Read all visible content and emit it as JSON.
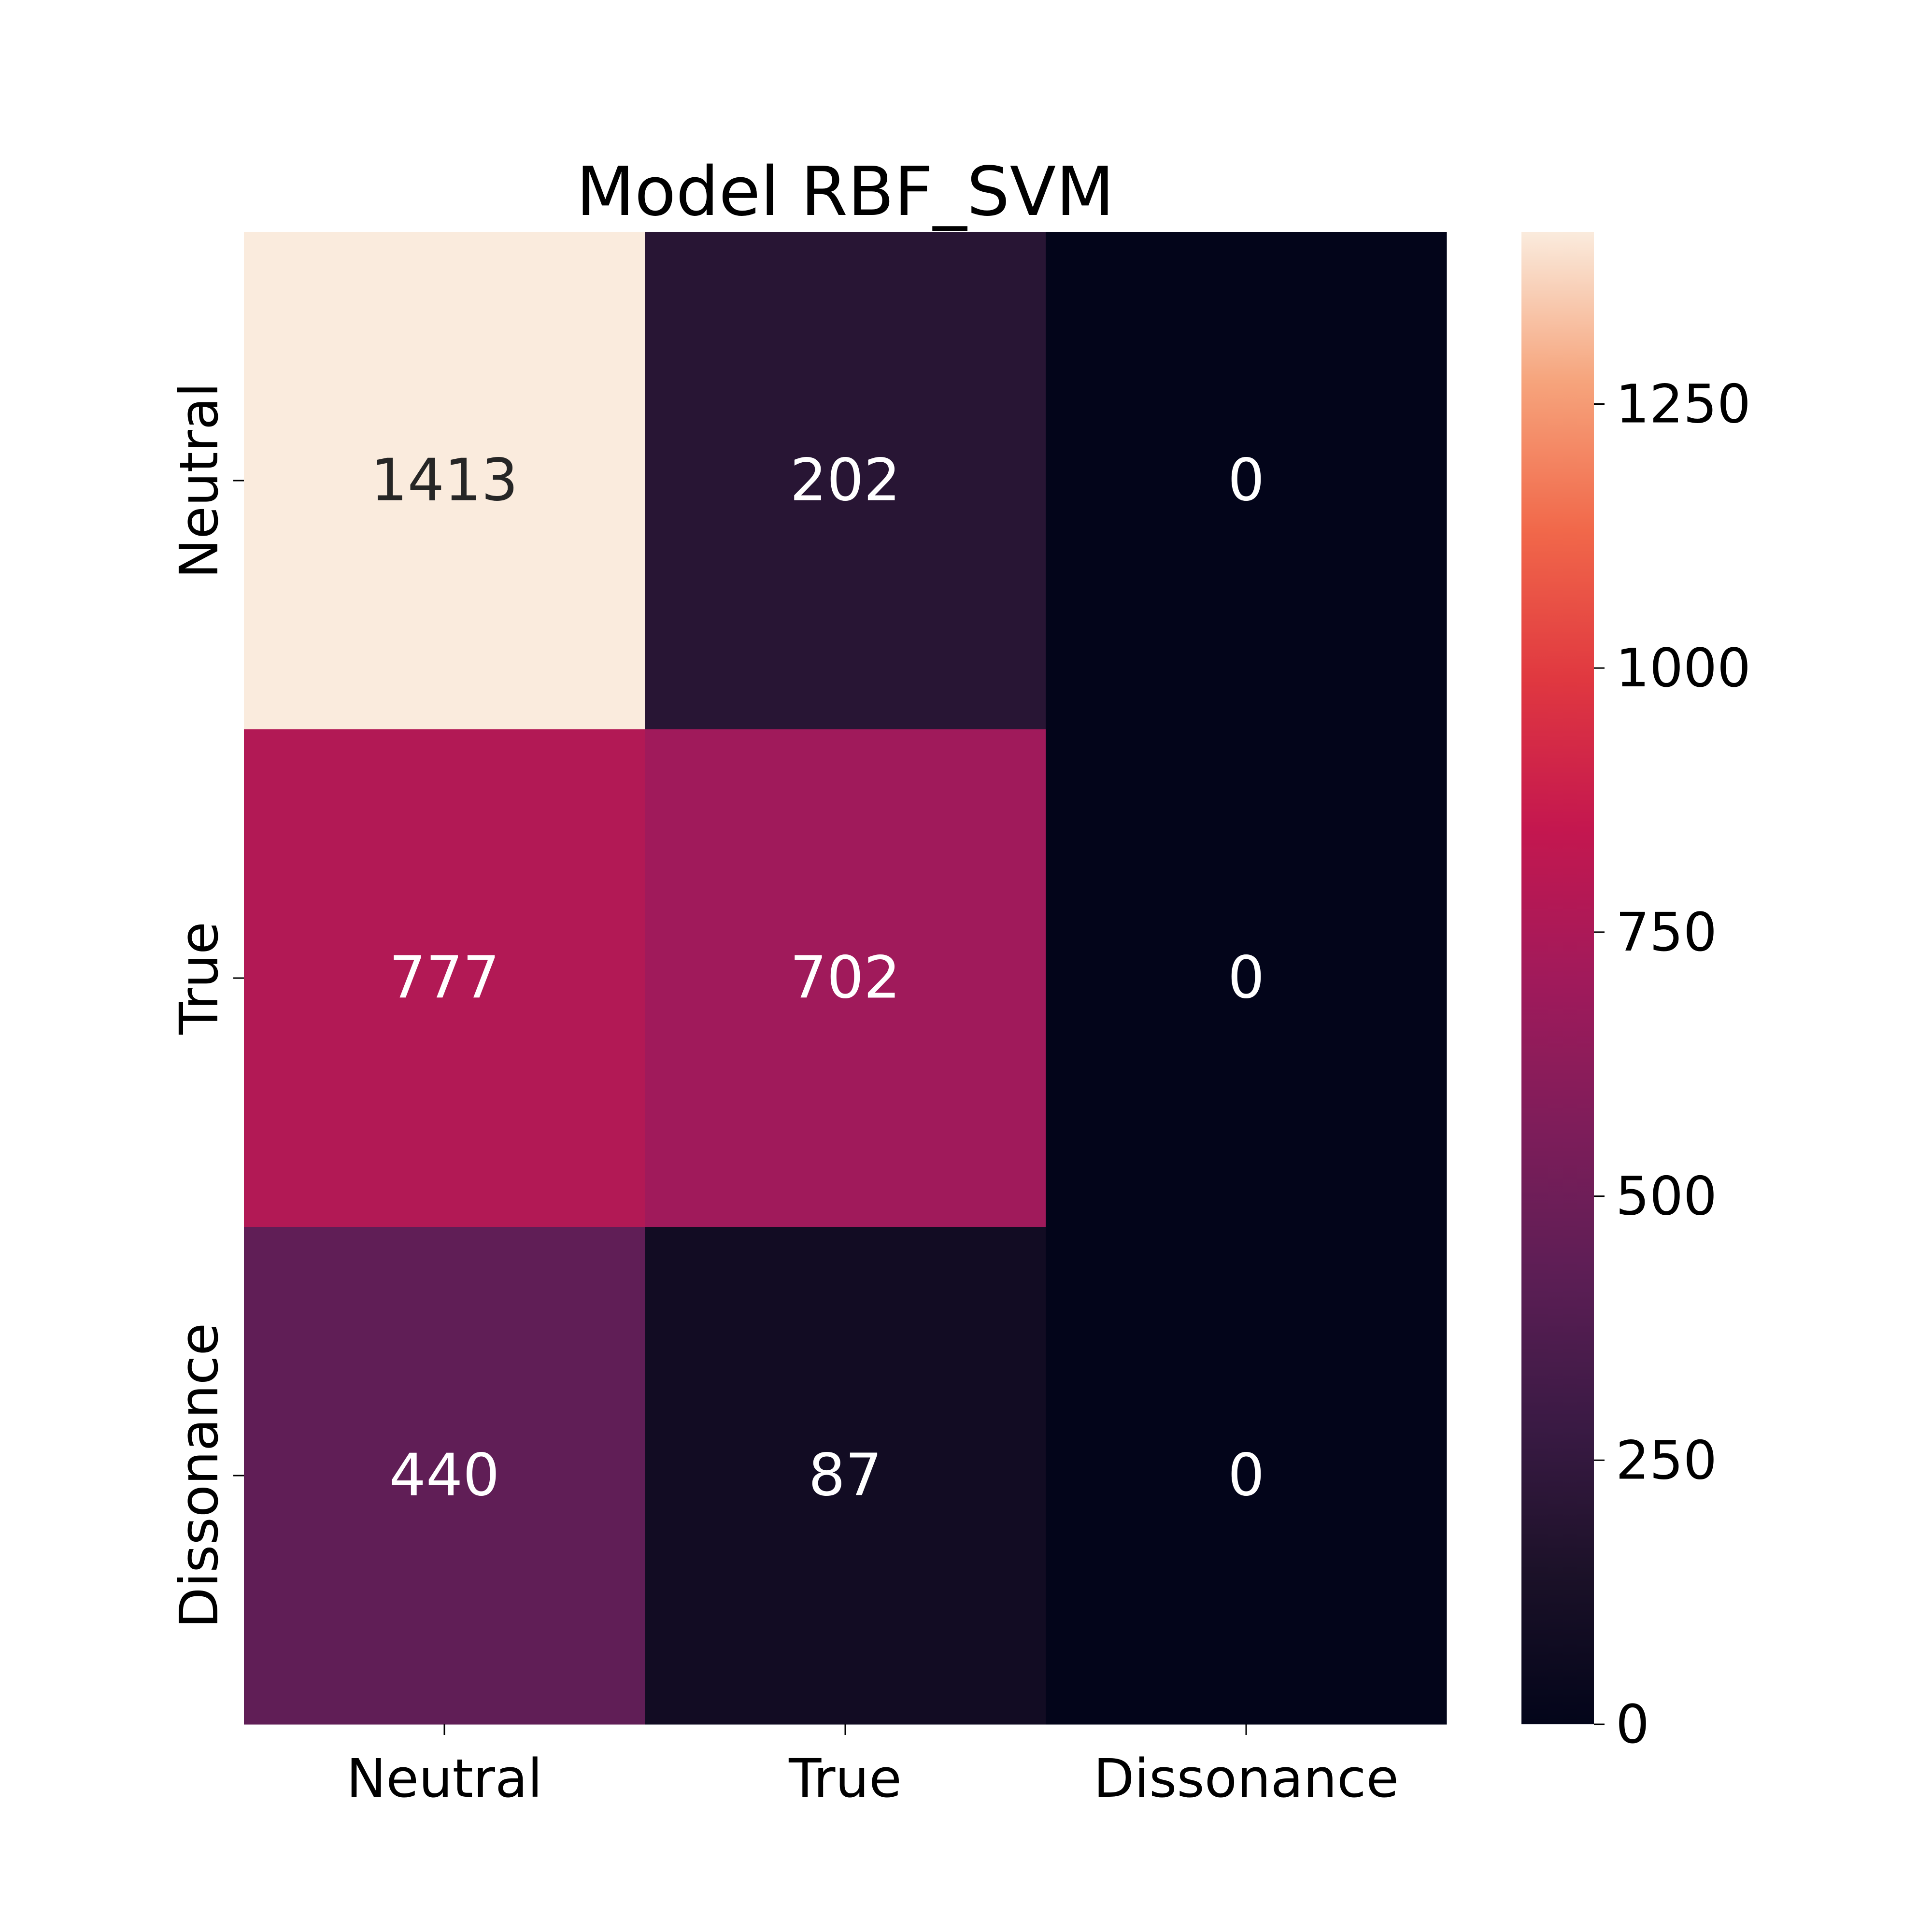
{
  "chart_data": {
    "type": "heatmap",
    "title": "Model RBF_SVM",
    "xlabel": "",
    "ylabel": "",
    "x_categories": [
      "Neutral",
      "True",
      "Dissonance"
    ],
    "y_categories": [
      "Neutral",
      "True",
      "Dissonance"
    ],
    "values": [
      [
        1413,
        202,
        0
      ],
      [
        777,
        702,
        0
      ],
      [
        440,
        87,
        0
      ]
    ],
    "colorbar": {
      "ticks": [
        "0",
        "250",
        "500",
        "750",
        "1000",
        "1250"
      ],
      "range": [
        0,
        1413
      ],
      "colormap": "rocket"
    },
    "annotation_colors": {
      "light": "#262626",
      "dark": "#ffffff"
    }
  }
}
